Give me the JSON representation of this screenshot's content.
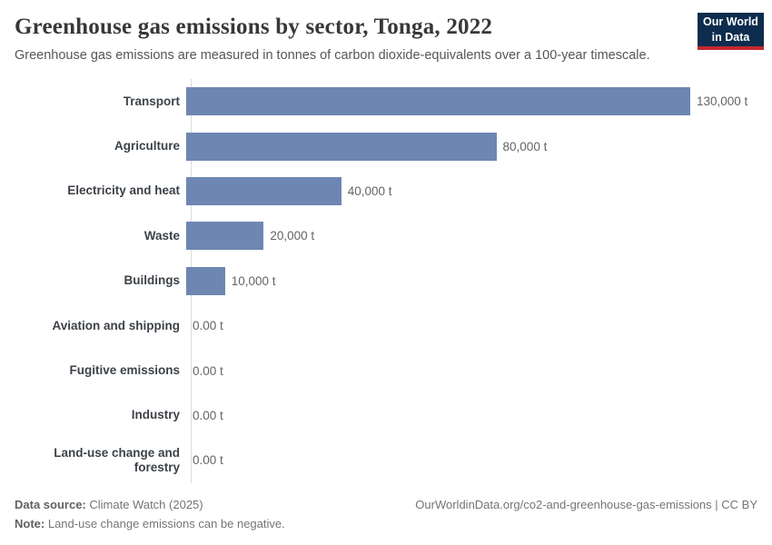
{
  "header": {
    "title": "Greenhouse gas emissions by sector, Tonga, 2022",
    "subtitle": "Greenhouse gas emissions are measured in tonnes of carbon dioxide-equivalents over a 100-year timescale.",
    "logo": {
      "line1": "Our World",
      "line2": "in Data",
      "background_color": "#0d2c4e",
      "accent_color": "#c5282f"
    }
  },
  "chart_data": {
    "type": "bar",
    "orientation": "horizontal",
    "title": "Greenhouse gas emissions by sector, Tonga, 2022",
    "xlabel": "",
    "ylabel": "",
    "xlim": [
      0,
      130000
    ],
    "grid": false,
    "legend": "none",
    "bar_color": "#6d87b2",
    "unit": "t",
    "categories": [
      "Transport",
      "Agriculture",
      "Electricity and heat",
      "Waste",
      "Buildings",
      "Aviation and shipping",
      "Fugitive emissions",
      "Industry",
      "Land-use change and forestry"
    ],
    "values": [
      130000,
      80000,
      40000,
      20000,
      10000,
      0,
      0,
      0,
      0
    ],
    "value_labels": [
      "130,000 t",
      "80,000 t",
      "40,000 t",
      "20,000 t",
      "10,000 t",
      "0.00 t",
      "0.00 t",
      "0.00 t",
      "0.00 t"
    ]
  },
  "footer": {
    "data_source_label": "Data source:",
    "data_source_value": "Climate Watch (2025)",
    "note_label": "Note:",
    "note_value": "Land-use change emissions can be negative.",
    "credit": "OurWorldinData.org/co2-and-greenhouse-gas-emissions | CC BY"
  }
}
